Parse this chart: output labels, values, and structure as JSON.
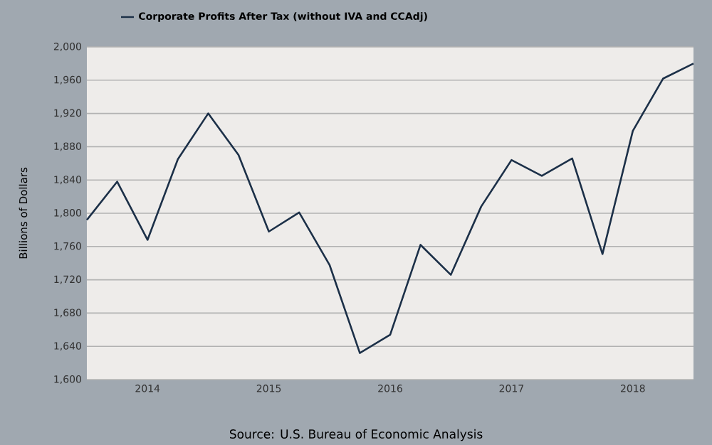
{
  "chart_data": {
    "type": "line",
    "ylabel": "Billions of Dollars",
    "annotations": [
      "Source: U.S. Bureau of Economic Analysis"
    ],
    "x": [
      "2013-07",
      "2013-10",
      "2014-01",
      "2014-04",
      "2014-07",
      "2014-10",
      "2015-01",
      "2015-04",
      "2015-07",
      "2015-10",
      "2016-01",
      "2016-04",
      "2016-07",
      "2016-10",
      "2017-01",
      "2017-04",
      "2017-07",
      "2017-10",
      "2018-01",
      "2018-04",
      "2018-07"
    ],
    "series": [
      {
        "name": "Corporate Profits After Tax (without IVA and CCAdj)",
        "color": "#1c3048",
        "values": [
          1792,
          1838,
          1768,
          1865,
          1920,
          1870,
          1778,
          1801,
          1738,
          1632,
          1654,
          1762,
          1726,
          1808,
          1864,
          1845,
          1866,
          1751,
          1899,
          1962,
          1980
        ]
      }
    ],
    "xlim": [
      "2013-07",
      "2018-07"
    ],
    "xticks": [
      "2014",
      "2015",
      "2016",
      "2017",
      "2018"
    ],
    "ylim": [
      1600,
      2000
    ],
    "yticks": [
      {
        "value": 1600,
        "label": "1,600"
      },
      {
        "value": 1640,
        "label": "1,640"
      },
      {
        "value": 1680,
        "label": "1,680"
      },
      {
        "value": 1720,
        "label": "1,720"
      },
      {
        "value": 1760,
        "label": "1,760"
      },
      {
        "value": 1800,
        "label": "1,800"
      },
      {
        "value": 1840,
        "label": "1,840"
      },
      {
        "value": 1880,
        "label": "1,880"
      },
      {
        "value": 1920,
        "label": "1,920"
      },
      {
        "value": 1960,
        "label": "1,960"
      },
      {
        "value": 2000,
        "label": "2,000"
      }
    ],
    "grid": "y",
    "legend": "top left",
    "marker": "none",
    "line_style": "solid"
  }
}
